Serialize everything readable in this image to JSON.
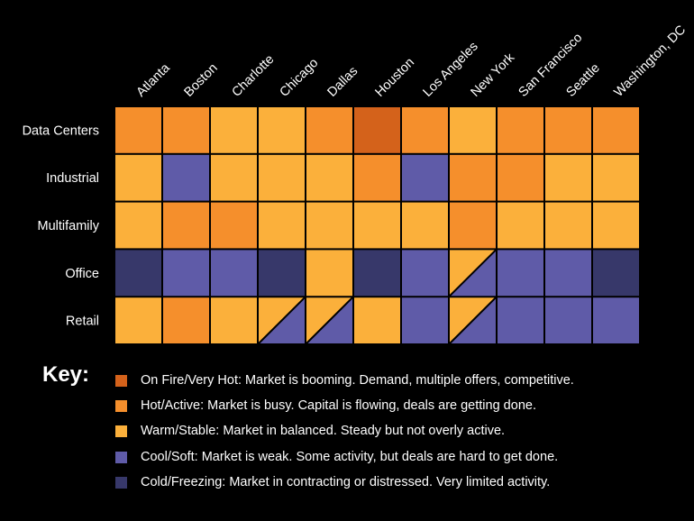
{
  "chart_data": {
    "type": "heatmap",
    "columns": [
      "Atlanta",
      "Boston",
      "Charlotte",
      "Chicago",
      "Dallas",
      "Houston",
      "Los Angeles",
      "New York",
      "San Francisco",
      "Seattle",
      "Washington, DC"
    ],
    "rows": [
      "Data Centers",
      "Industrial",
      "Multifamily",
      "Office",
      "Retail"
    ],
    "levels": {
      "fire": "#D4621B",
      "hot": "#F58F2C",
      "warm": "#FBB03B",
      "cool": "#5F5BA8",
      "cold": "#37386A"
    },
    "cells": [
      [
        "hot",
        "hot",
        "warm",
        "warm",
        "hot",
        "fire",
        "hot",
        "warm",
        "hot",
        "hot",
        "hot"
      ],
      [
        "warm",
        "cool",
        "warm",
        "warm",
        "warm",
        "hot",
        "cool",
        "hot",
        "hot",
        "warm",
        "warm"
      ],
      [
        "warm",
        "hot",
        "hot",
        "warm",
        "warm",
        "warm",
        "warm",
        "hot",
        "warm",
        "warm",
        "warm"
      ],
      [
        "cold",
        "cool",
        "cool",
        "cold",
        "warm",
        "cold",
        "cool",
        "warm/cool",
        "cool",
        "cool",
        "cold"
      ],
      [
        "warm",
        "hot",
        "warm",
        "warm/cool",
        "warm/cool",
        "warm",
        "cool",
        "warm/cool",
        "cool",
        "cool",
        "cool"
      ]
    ]
  },
  "key": {
    "title": "Key:",
    "items": [
      {
        "level": "fire",
        "label": "On Fire/Very Hot: Market is booming. Demand, multiple offers, competitive."
      },
      {
        "level": "hot",
        "label": "Hot/Active: Market is busy. Capital is flowing, deals are getting done."
      },
      {
        "level": "warm",
        "label": "Warm/Stable: Market in balanced. Steady but not overly active."
      },
      {
        "level": "cool",
        "label": "Cool/Soft: Market is weak. Some activity, but deals are hard to get done."
      },
      {
        "level": "cold",
        "label": "Cold/Freezing: Market in contracting or distressed. Very limited activity."
      }
    ]
  }
}
